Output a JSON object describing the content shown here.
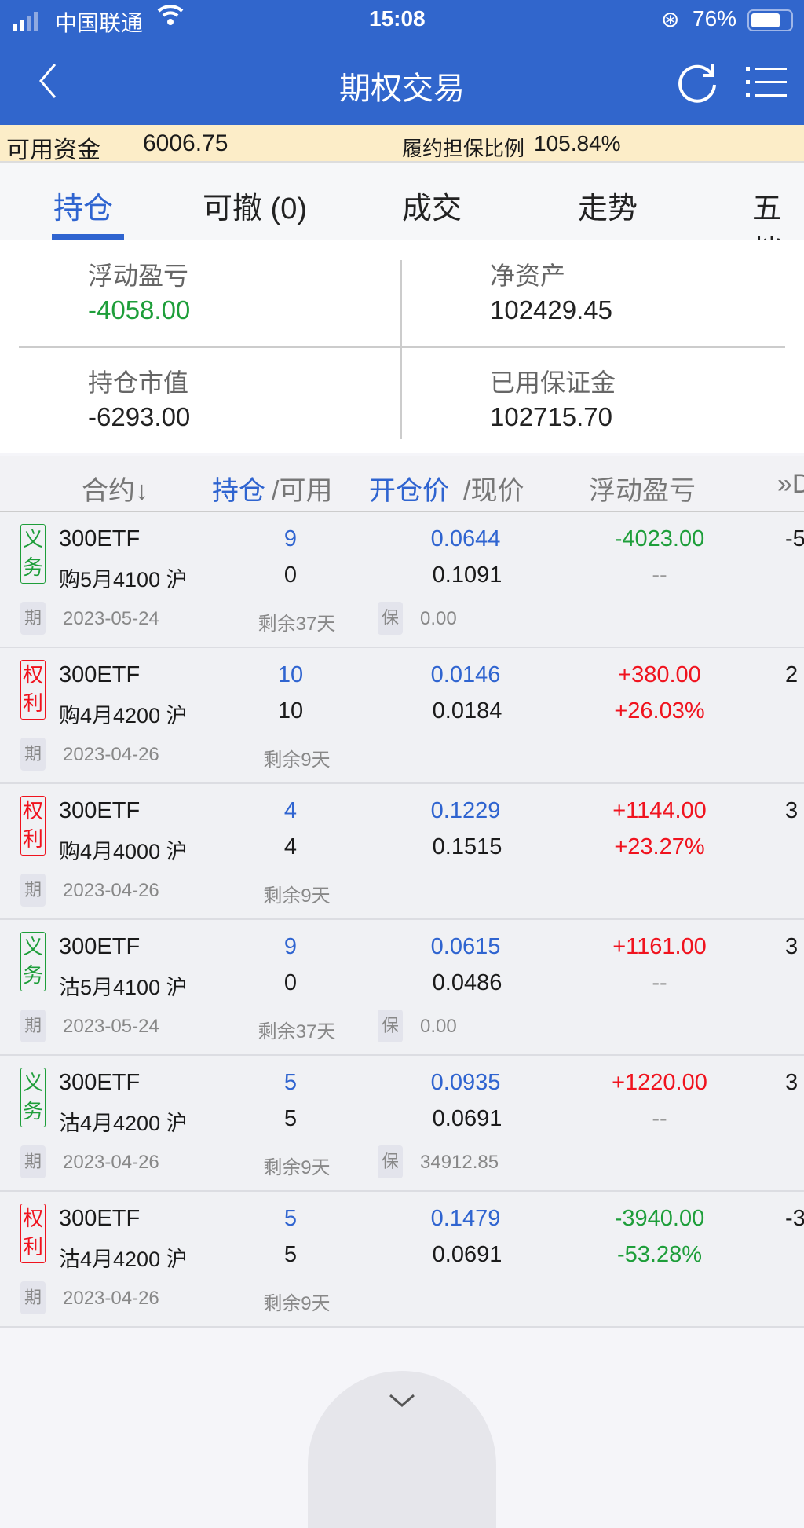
{
  "status_bar": {
    "carrier": "中国联通",
    "time": "15:08",
    "battery": "76%"
  },
  "nav": {
    "title": "期权交易",
    "back_icon": "chevron-left-icon",
    "refresh_icon": "refresh-icon",
    "menu_icon": "list-menu-icon"
  },
  "funds": {
    "available_label": "可用资金",
    "available_value": "6006.75",
    "ratio_label": "履约担保比例",
    "ratio_value": "105.84%"
  },
  "tabs": [
    {
      "label": "持仓",
      "active": true
    },
    {
      "label": "可撤 (0)"
    },
    {
      "label": "成交"
    },
    {
      "label": "走势"
    },
    {
      "label": "五档"
    }
  ],
  "summary": {
    "float_pnl_label": "浮动盈亏",
    "float_pnl": "-4058.00",
    "net_assets_label": "净资产",
    "net_assets": "102429.45",
    "market_value_label": "持仓市值",
    "market_value": "-6293.00",
    "margin_used_label": "已用保证金",
    "margin_used": "102715.70"
  },
  "table_header": {
    "contract": "合约↓",
    "position": "持仓",
    "available": "/可用",
    "open_price": "开仓价",
    "current_price": "/现价",
    "pnl": "浮动盈亏",
    "more": "»D"
  },
  "rows": [
    {
      "type": "义务",
      "name": "300ETF",
      "detail": "购5月4100 沪",
      "position": "9",
      "available": "0",
      "open_price": "0.0644",
      "current_price": "0.1091",
      "pnl": "-4023.00",
      "pnl_pct": "--",
      "extra": "-5",
      "expiry_tag": "期",
      "expiry": "2023-05-24",
      "remaining": "剩余37天",
      "margin_tag": "保",
      "margin": "0.00"
    },
    {
      "type": "权利",
      "name": "300ETF",
      "detail": "购4月4200 沪",
      "position": "10",
      "available": "10",
      "open_price": "0.0146",
      "current_price": "0.0184",
      "pnl": "+380.00",
      "pnl_pct": "+26.03%",
      "extra": "2",
      "expiry_tag": "期",
      "expiry": "2023-04-26",
      "remaining": "剩余9天"
    },
    {
      "type": "权利",
      "name": "300ETF",
      "detail": "购4月4000 沪",
      "position": "4",
      "available": "4",
      "open_price": "0.1229",
      "current_price": "0.1515",
      "pnl": "+1144.00",
      "pnl_pct": "+23.27%",
      "extra": "3",
      "expiry_tag": "期",
      "expiry": "2023-04-26",
      "remaining": "剩余9天"
    },
    {
      "type": "义务",
      "name": "300ETF",
      "detail": "沽5月4100 沪",
      "position": "9",
      "available": "0",
      "open_price": "0.0615",
      "current_price": "0.0486",
      "pnl": "+1161.00",
      "pnl_pct": "--",
      "extra": "3",
      "expiry_tag": "期",
      "expiry": "2023-05-24",
      "remaining": "剩余37天",
      "margin_tag": "保",
      "margin": "0.00"
    },
    {
      "type": "义务",
      "name": "300ETF",
      "detail": "沽4月4200 沪",
      "position": "5",
      "available": "5",
      "open_price": "0.0935",
      "current_price": "0.0691",
      "pnl": "+1220.00",
      "pnl_pct": "--",
      "extra": "3",
      "expiry_tag": "期",
      "expiry": "2023-04-26",
      "remaining": "剩余9天",
      "margin_tag": "保",
      "margin": "34912.85"
    },
    {
      "type": "权利",
      "name": "300ETF",
      "detail": "沽4月4200 沪",
      "position": "5",
      "available": "5",
      "open_price": "0.1479",
      "current_price": "0.0691",
      "pnl": "-3940.00",
      "pnl_pct": "-53.28%",
      "extra": "-3",
      "expiry_tag": "期",
      "expiry": "2023-04-26",
      "remaining": "剩余9天"
    }
  ],
  "colors": {
    "brand": "#3166cc",
    "profit": "#f0131e",
    "loss": "#1e9e3a",
    "obligation": "#1e9e3a",
    "right": "#f0131e"
  }
}
